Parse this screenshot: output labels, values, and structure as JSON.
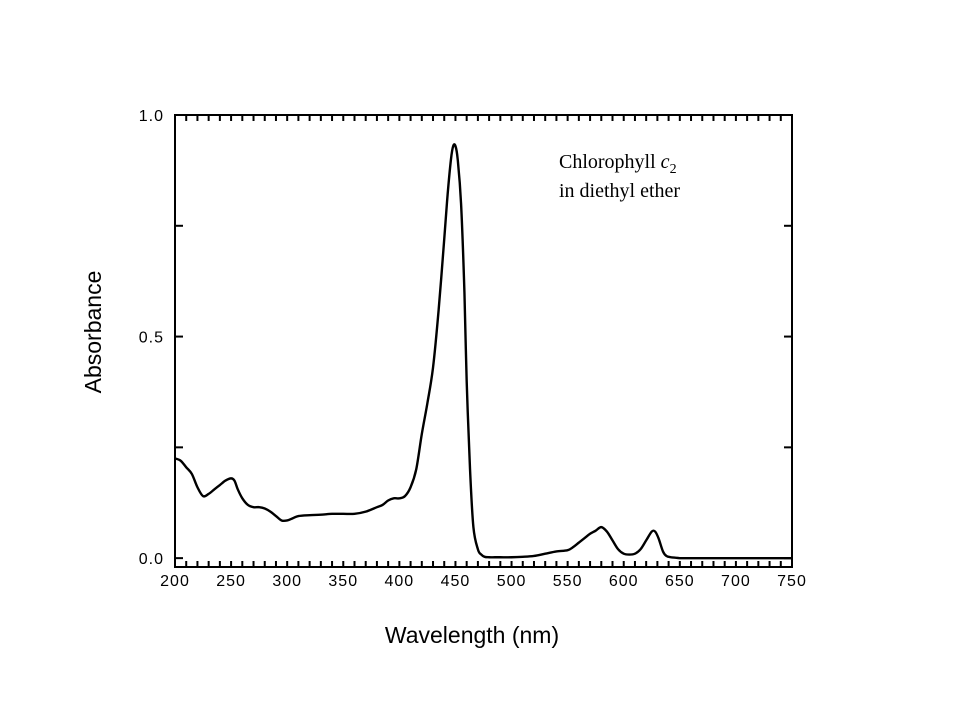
{
  "chart_data": {
    "type": "line",
    "title": "",
    "xlabel": "Wavelength (nm)",
    "ylabel": "Absorbance",
    "xlim": [
      200,
      750
    ],
    "ylim": [
      -0.02,
      1.0
    ],
    "x_ticks": [
      "200",
      "250",
      "300",
      "350",
      "400",
      "450",
      "500",
      "550",
      "600",
      "650",
      "700",
      "750"
    ],
    "y_ticks": [
      "0.0",
      "0.5",
      "1.0"
    ],
    "annotation": {
      "line1": "Chlorophyll ",
      "line1_italic": "c",
      "line1_sub": "2",
      "line2": "in diethyl ether"
    },
    "grid": false,
    "series": [
      {
        "color": "#000000",
        "x": [
          200,
          205,
          210,
          215,
          220,
          225,
          230,
          235,
          240,
          245,
          250,
          253,
          256,
          260,
          265,
          270,
          275,
          280,
          285,
          290,
          295,
          300,
          305,
          310,
          320,
          330,
          340,
          350,
          360,
          370,
          380,
          385,
          390,
          395,
          400,
          405,
          410,
          415,
          420,
          425,
          430,
          435,
          440,
          443,
          446,
          448,
          450,
          452,
          455,
          458,
          460,
          463,
          466,
          470,
          473,
          476,
          480,
          485,
          490,
          500,
          510,
          520,
          530,
          540,
          550,
          555,
          560,
          565,
          570,
          575,
          580,
          585,
          590,
          595,
          600,
          605,
          610,
          615,
          620,
          625,
          628,
          631,
          635,
          638,
          642,
          646,
          650,
          660,
          680,
          700,
          720,
          750
        ],
        "y": [
          0.225,
          0.22,
          0.205,
          0.19,
          0.16,
          0.14,
          0.145,
          0.155,
          0.165,
          0.175,
          0.18,
          0.175,
          0.155,
          0.135,
          0.12,
          0.115,
          0.115,
          0.112,
          0.105,
          0.095,
          0.085,
          0.085,
          0.09,
          0.095,
          0.097,
          0.098,
          0.1,
          0.1,
          0.1,
          0.105,
          0.115,
          0.12,
          0.13,
          0.135,
          0.135,
          0.14,
          0.16,
          0.2,
          0.28,
          0.35,
          0.43,
          0.56,
          0.72,
          0.82,
          0.9,
          0.93,
          0.93,
          0.9,
          0.8,
          0.6,
          0.4,
          0.2,
          0.07,
          0.02,
          0.008,
          0.003,
          0.002,
          0.002,
          0.002,
          0.002,
          0.003,
          0.005,
          0.01,
          0.015,
          0.018,
          0.025,
          0.035,
          0.045,
          0.055,
          0.062,
          0.07,
          0.06,
          0.04,
          0.02,
          0.01,
          0.008,
          0.01,
          0.02,
          0.04,
          0.06,
          0.06,
          0.045,
          0.015,
          0.005,
          0.002,
          0.001,
          0.0,
          0.0,
          0.0,
          0.0,
          0.0,
          0.0
        ]
      }
    ]
  }
}
